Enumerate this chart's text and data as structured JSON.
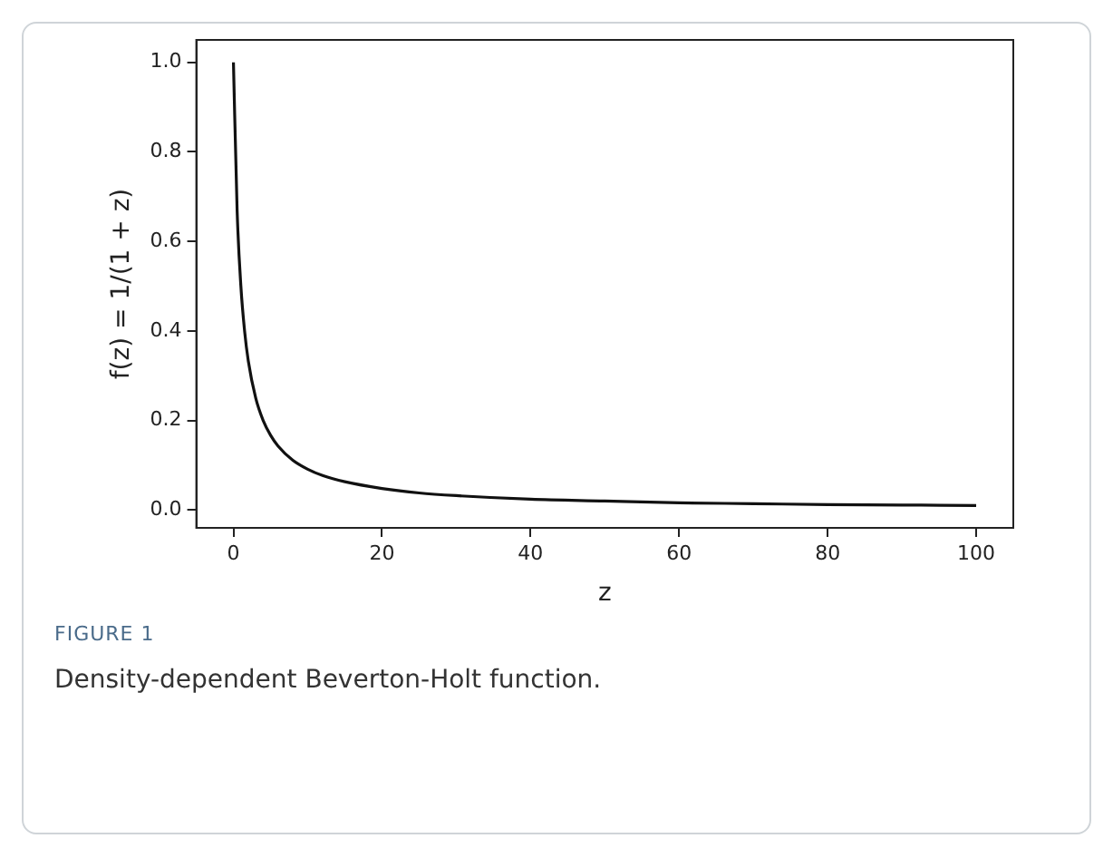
{
  "chart_data": {
    "type": "line",
    "xlabel": "z",
    "ylabel": "f(z) = 1/(1 + z)",
    "annotations": [
      "FIGURE 1",
      "Density-dependent Beverton-Holt function."
    ],
    "x": [
      0,
      0.5,
      1,
      1.5,
      2,
      3,
      4,
      5,
      6,
      8,
      10,
      12,
      15,
      20,
      25,
      30,
      40,
      50,
      60,
      70,
      80,
      90,
      100
    ],
    "series": [
      {
        "color": "#111111",
        "values": [
          1.0,
          0.667,
          0.5,
          0.4,
          0.333,
          0.25,
          0.2,
          0.167,
          0.143,
          0.111,
          0.091,
          0.077,
          0.063,
          0.048,
          0.038,
          0.032,
          0.024,
          0.02,
          0.016,
          0.014,
          0.012,
          0.011,
          0.01
        ]
      }
    ],
    "xlim": [
      -5,
      105
    ],
    "ylim": [
      -0.04,
      1.05
    ],
    "xticks": [
      0,
      20,
      40,
      60,
      80,
      100
    ],
    "yticks": [
      {
        "value": 0,
        "label": "0.0"
      },
      {
        "value": 0.2,
        "label": "0.2"
      },
      {
        "value": 0.4,
        "label": "0.4"
      },
      {
        "value": 0.6,
        "label": "0.6"
      },
      {
        "value": 0.8,
        "label": "0.8"
      },
      {
        "value": 1,
        "label": "1.0"
      }
    ]
  }
}
